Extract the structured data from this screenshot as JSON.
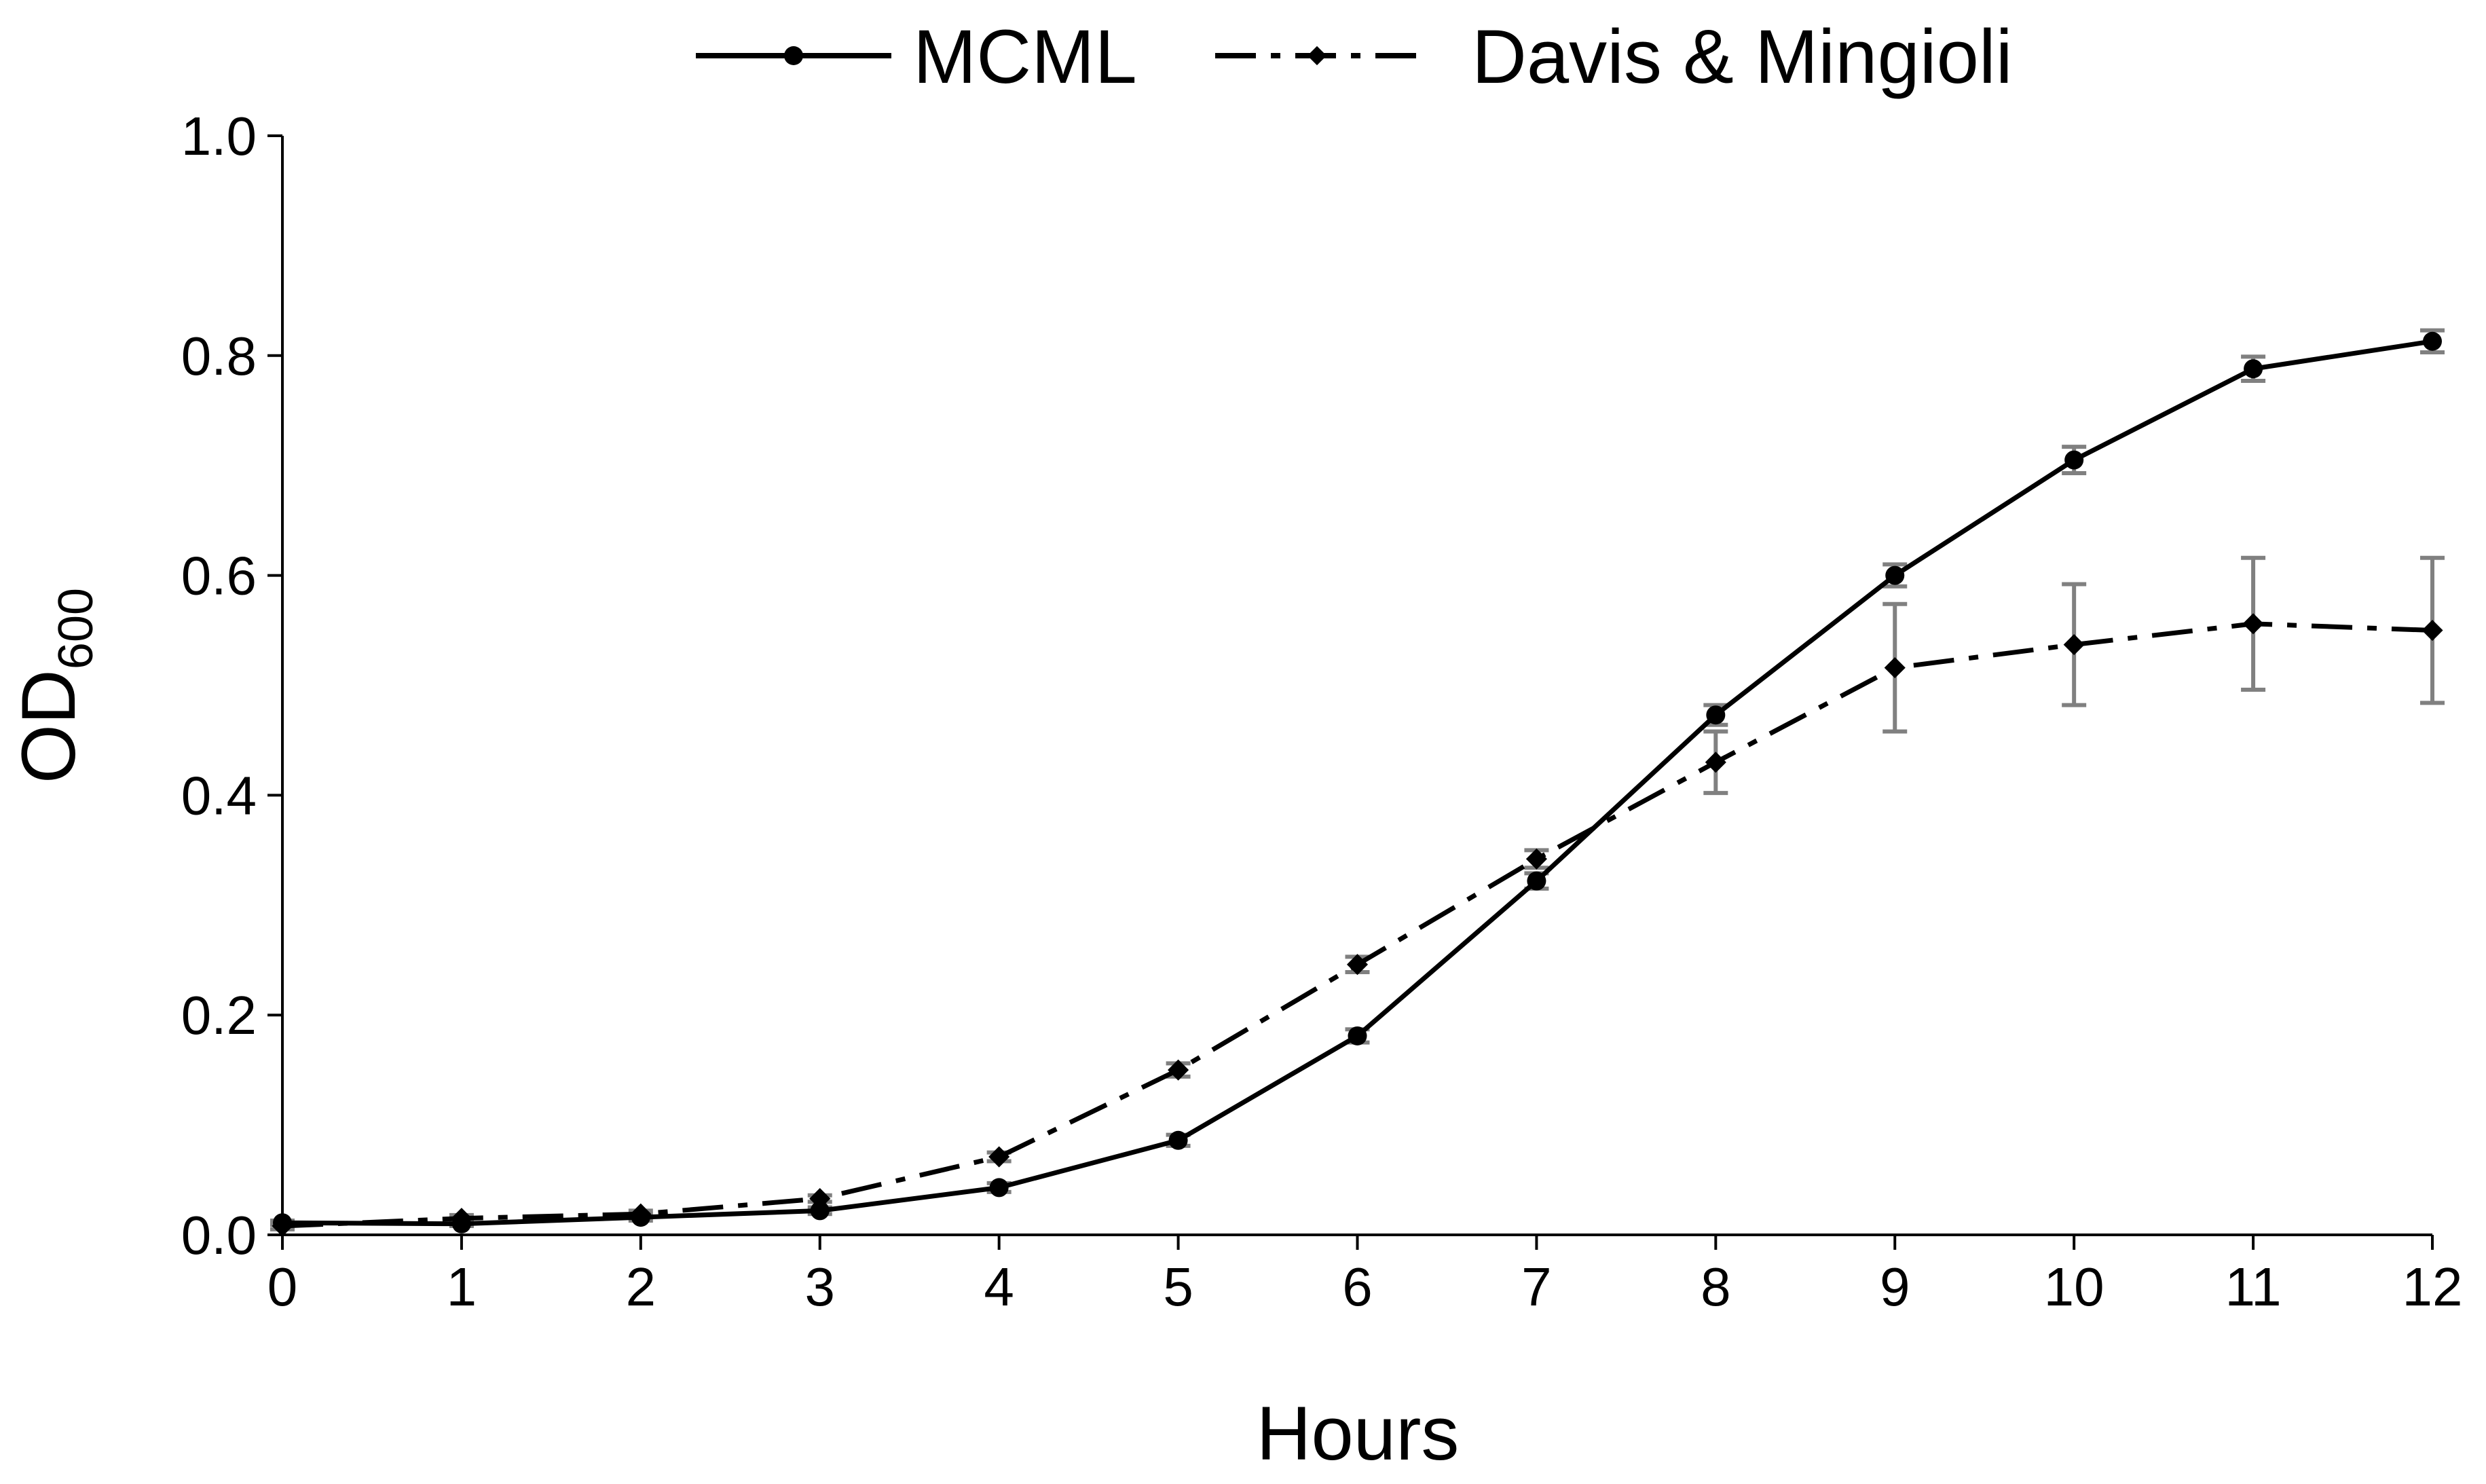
{
  "chart_data": {
    "type": "line",
    "title": "",
    "xlabel": "Hours",
    "ylabel": {
      "main": "OD",
      "subscript": "600"
    },
    "xlim": [
      0,
      12
    ],
    "ylim": [
      0,
      1.0
    ],
    "x_ticks": [
      "0",
      "1",
      "2",
      "3",
      "4",
      "5",
      "6",
      "7",
      "8",
      "9",
      "10",
      "11",
      "12"
    ],
    "y_ticks": [
      "0.0",
      "0.2",
      "0.4",
      "0.6",
      "0.8",
      "1.0"
    ],
    "grid": false,
    "legend": "top-center",
    "x": [
      0,
      1,
      2,
      3,
      4,
      5,
      6,
      7,
      8,
      9,
      10,
      11,
      12
    ],
    "series": [
      {
        "name": "MCML",
        "marker": "circle",
        "line_style": "solid",
        "color": "#000000",
        "values": [
          0.011,
          0.01,
          0.016,
          0.022,
          0.043,
          0.086,
          0.181,
          0.322,
          0.473,
          0.6,
          0.705,
          0.788,
          0.813
        ],
        "error": [
          0.002,
          0.002,
          0.003,
          0.003,
          0.004,
          0.005,
          0.006,
          0.007,
          0.009,
          0.01,
          0.012,
          0.011,
          0.01
        ]
      },
      {
        "name": "Davis & Mingioli",
        "marker": "diamond",
        "line_style": "dashdot",
        "color": "#000000",
        "values": [
          0.008,
          0.015,
          0.019,
          0.033,
          0.071,
          0.15,
          0.246,
          0.342,
          0.43,
          0.516,
          0.537,
          0.556,
          0.55
        ],
        "error": [
          0.003,
          0.003,
          0.003,
          0.003,
          0.004,
          0.006,
          0.007,
          0.008,
          0.028,
          0.058,
          0.055,
          0.06,
          0.066
        ]
      }
    ],
    "error_bar_color": "#808080"
  }
}
